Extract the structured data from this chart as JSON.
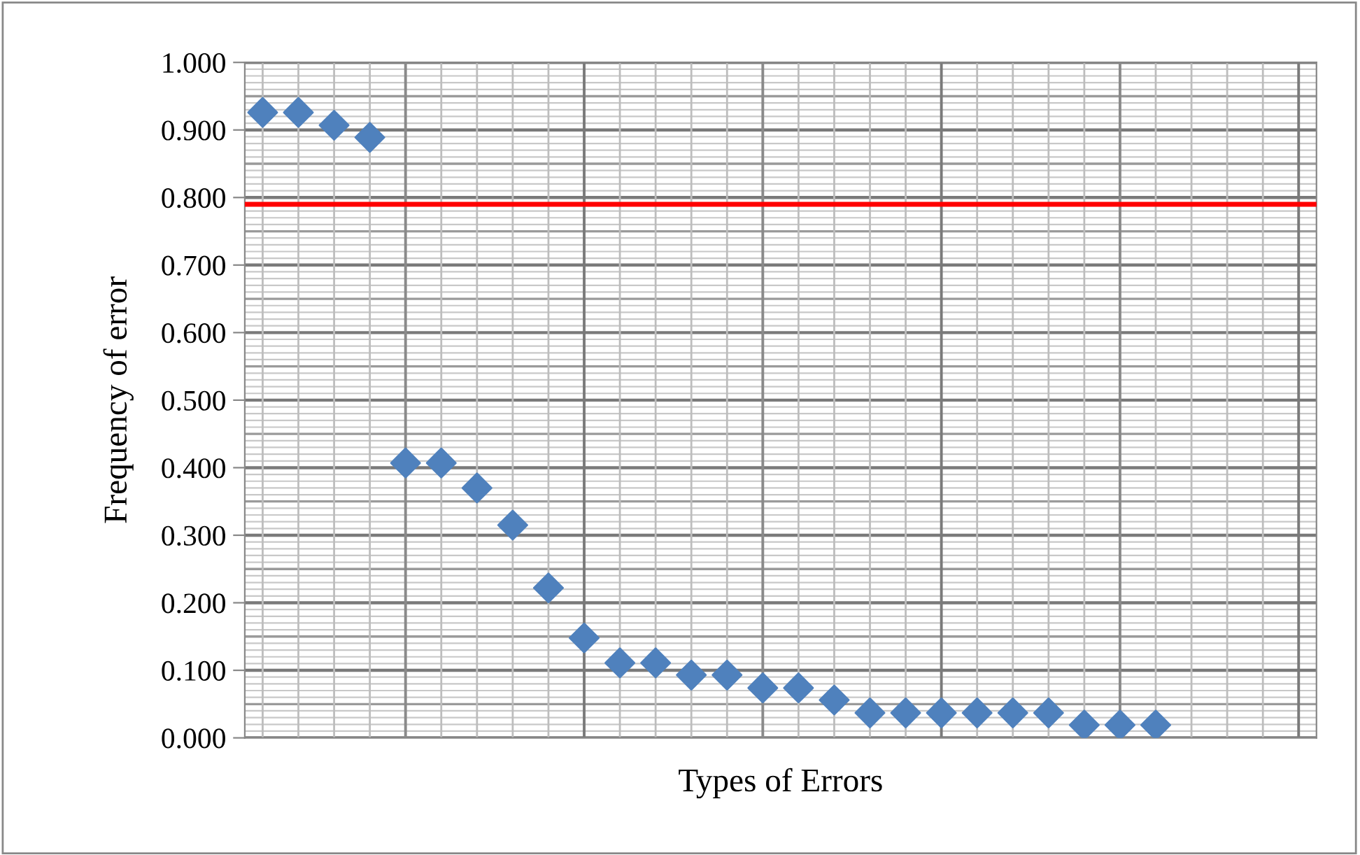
{
  "chart_data": {
    "type": "scatter",
    "xlabel": "Types of Errors",
    "ylabel": "Frequency of error",
    "categories": [
      null,
      null,
      null,
      null,
      null,
      null,
      null,
      null,
      null,
      null,
      null,
      null,
      null,
      null,
      null,
      null,
      null,
      null,
      null,
      null,
      null,
      null,
      null,
      null,
      null,
      null,
      null,
      null,
      null,
      null
    ],
    "series": [
      {
        "color": "#4f81bd",
        "values": [
          0.926,
          0.926,
          0.907,
          0.889,
          0.407,
          0.407,
          0.37,
          0.315,
          0.222,
          0.148,
          0.111,
          0.111,
          0.093,
          0.093,
          0.074,
          0.074,
          0.056,
          0.037,
          0.037,
          0.037,
          0.037,
          0.037,
          0.037,
          0.019,
          0.019,
          0.019,
          null,
          null,
          null,
          null
        ]
      }
    ],
    "marker": "diamond",
    "ylim": [
      0,
      1
    ],
    "yticks": [
      {
        "value": 0,
        "label": "0.000"
      },
      {
        "value": 0.1,
        "label": "0.100"
      },
      {
        "value": 0.2,
        "label": "0.200"
      },
      {
        "value": 0.3,
        "label": "0.300"
      },
      {
        "value": 0.4,
        "label": "0.400"
      },
      {
        "value": 0.5,
        "label": "0.500"
      },
      {
        "value": 0.6,
        "label": "0.600"
      },
      {
        "value": 0.7,
        "label": "0.700"
      },
      {
        "value": 0.8,
        "label": "0.800"
      },
      {
        "value": 0.9,
        "label": "0.900"
      },
      {
        "value": 1,
        "label": "1.000"
      }
    ],
    "ref_lines": [
      {
        "axis": "y",
        "value": 0.79,
        "color": "#ff0000"
      }
    ],
    "grid": true,
    "tick_labels": "y"
  }
}
